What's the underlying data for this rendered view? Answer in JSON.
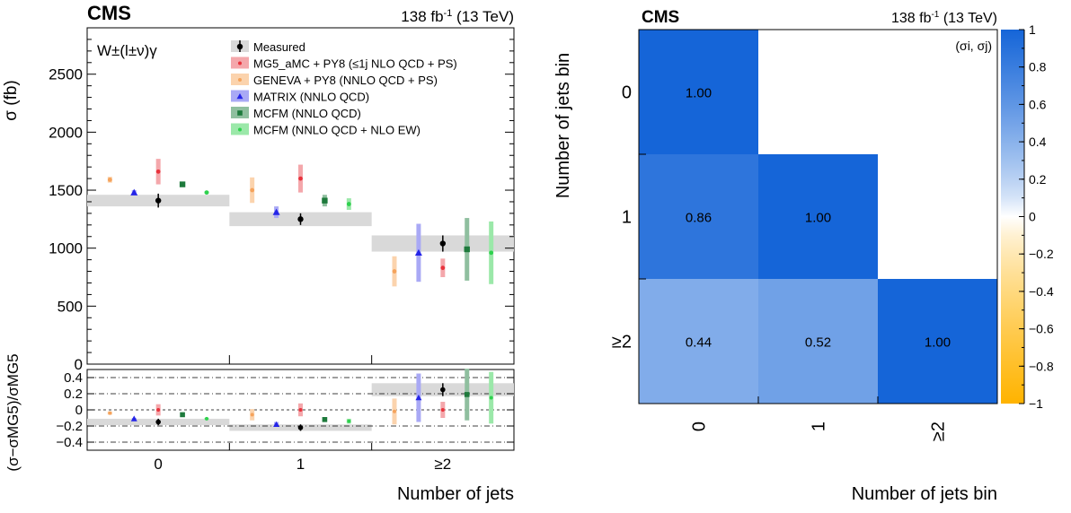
{
  "left_panel": {
    "experiment": "CMS",
    "lumi": "138 fb",
    "lumi_sup": "-1",
    "energy": "(13 TeV)",
    "process": "W±(l±ν)γ",
    "y_label": "σ (fb)",
    "ratio_y_label": "(σ−σMG5)/σMG5",
    "x_label": "Number of jets"
  },
  "right_panel": {
    "experiment": "CMS",
    "lumi": "138 fb",
    "lumi_sup": "-1",
    "energy": "(13 TeV)",
    "corr_label": "(σi, σj)",
    "x_label": "Number of jets bin",
    "y_label": "Number of jets bin"
  },
  "chart_data": [
    {
      "type": "scatter",
      "title": "CMS",
      "xlabel": "Number of jets",
      "ylabel": "σ (fb)",
      "categories": [
        "0",
        "1",
        "≥2"
      ],
      "ylim": [
        0,
        2900
      ],
      "yticks": [
        0,
        500,
        1000,
        1500,
        2000,
        2500
      ],
      "legend_position": "top-right",
      "series": [
        {
          "name": "Measured",
          "color": "#000000",
          "marker": "circle",
          "values": [
            1410,
            1250,
            1040
          ],
          "err": [
            60,
            50,
            70
          ],
          "band_err": [
            50,
            60,
            70
          ]
        },
        {
          "name": "MG5_aMC + PY8 (≤1j NLO QCD + PS)",
          "color": "#e8323c",
          "marker": "circle",
          "values": [
            1660,
            1600,
            830
          ],
          "err": [
            110,
            120,
            80
          ]
        },
        {
          "name": "GENEVA + PY8 (NNLO QCD + PS)",
          "color": "#f5a35c",
          "marker": "circle",
          "values": [
            1590,
            1500,
            800
          ],
          "err": [
            25,
            110,
            130
          ]
        },
        {
          "name": "MATRIX (NNLO QCD)",
          "color": "#2525e8",
          "marker": "triangle",
          "values": [
            1480,
            1310,
            960
          ],
          "err": [
            20,
            50,
            250
          ]
        },
        {
          "name": "MCFM (NNLO QCD)",
          "color": "#1e7a3c",
          "marker": "square",
          "values": [
            1550,
            1410,
            990
          ],
          "err": [
            10,
            50,
            270
          ]
        },
        {
          "name": "MCFM (NNLO QCD + NLO EW)",
          "color": "#2fd14e",
          "marker": "circle",
          "values": [
            1480,
            1380,
            960
          ],
          "err": [
            10,
            50,
            270
          ]
        }
      ]
    },
    {
      "type": "scatter",
      "ylabel": "(σ−σMG5)/σMG5",
      "xlabel": "Number of jets",
      "categories": [
        "0",
        "1",
        "≥2"
      ],
      "ylim": [
        -0.5,
        0.5
      ],
      "yticks": [
        -0.4,
        -0.2,
        0,
        0.2,
        0.4
      ],
      "ytick_labels": [
        "−0.4",
        "−0.2",
        "0",
        "0.2",
        "0.4"
      ],
      "series": [
        {
          "name": "Measured",
          "values": [
            -0.15,
            -0.22,
            0.25
          ],
          "err": [
            0.04,
            0.04,
            0.08
          ],
          "band_err": [
            0.04,
            0.04,
            0.08
          ]
        },
        {
          "name": "MG5_aMC + PY8 (≤1j NLO QCD + PS)",
          "values": [
            0.0,
            0.0,
            0.0
          ],
          "err": [
            0.07,
            0.08,
            0.1
          ]
        },
        {
          "name": "GENEVA + PY8 (NNLO QCD + PS)",
          "values": [
            -0.04,
            -0.06,
            -0.02
          ],
          "err": [
            0.02,
            0.07,
            0.16
          ]
        },
        {
          "name": "MATRIX (NNLO QCD)",
          "values": [
            -0.11,
            -0.18,
            0.15
          ],
          "err": [
            0.01,
            0.03,
            0.3
          ]
        },
        {
          "name": "MCFM (NNLO QCD)",
          "values": [
            -0.06,
            -0.12,
            0.19
          ],
          "err": [
            0.01,
            0.03,
            0.32
          ]
        },
        {
          "name": "MCFM (NNLO QCD + NLO EW)",
          "values": [
            -0.11,
            -0.14,
            0.15
          ],
          "err": [
            0.01,
            0.03,
            0.32
          ]
        }
      ]
    },
    {
      "type": "heatmap",
      "title": "CMS",
      "xlabel": "Number of jets bin",
      "ylabel": "Number of jets bin",
      "x_categories": [
        "0",
        "1",
        "≥2"
      ],
      "y_categories": [
        "0",
        "1",
        "≥2"
      ],
      "values": [
        [
          1.0,
          null,
          null
        ],
        [
          0.86,
          1.0,
          null
        ],
        [
          0.44,
          0.52,
          1.0
        ]
      ],
      "value_labels": [
        [
          "1.00",
          "",
          ""
        ],
        [
          "0.86",
          "1.00",
          ""
        ],
        [
          "0.44",
          "0.52",
          "1.00"
        ]
      ],
      "colorbar": {
        "range": [
          -1,
          1
        ],
        "ticks": [
          1,
          0.8,
          0.6,
          0.4,
          0.2,
          0,
          -0.2,
          -0.4,
          -0.6,
          -0.8,
          -1
        ],
        "tick_labels": [
          "1",
          "0.8",
          "0.6",
          "0.4",
          "0.2",
          "0",
          "−0.2",
          "−0.4",
          "−0.6",
          "−0.8",
          "−1"
        ],
        "positive_color": "#1565d8",
        "negative_color": "#ffb300"
      }
    }
  ]
}
